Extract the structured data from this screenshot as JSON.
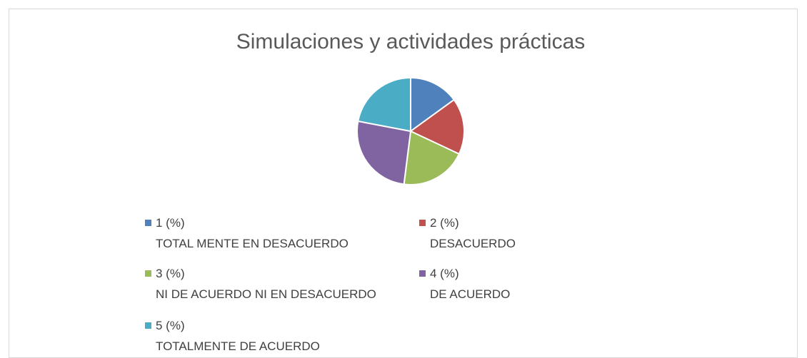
{
  "chart_data": {
    "type": "pie",
    "title": "Simulaciones y actividades prácticas",
    "categories": [
      "1 (%)\nTOTAL MENTE EN DESACUERDO",
      "2 (%)\nDESACUERDO",
      "3 (%)\nNI DE ACUERDO NI EN DESACUERDO",
      "4 (%)\nDE ACUERDO",
      "5 (%)\nTOTALMENTE DE ACUERDO"
    ],
    "values": [
      15,
      17,
      20,
      26,
      22
    ],
    "colors": [
      "#4f81bd",
      "#c0504d",
      "#9bbb59",
      "#8064a2",
      "#4bacc6"
    ],
    "legend": "bottom"
  }
}
